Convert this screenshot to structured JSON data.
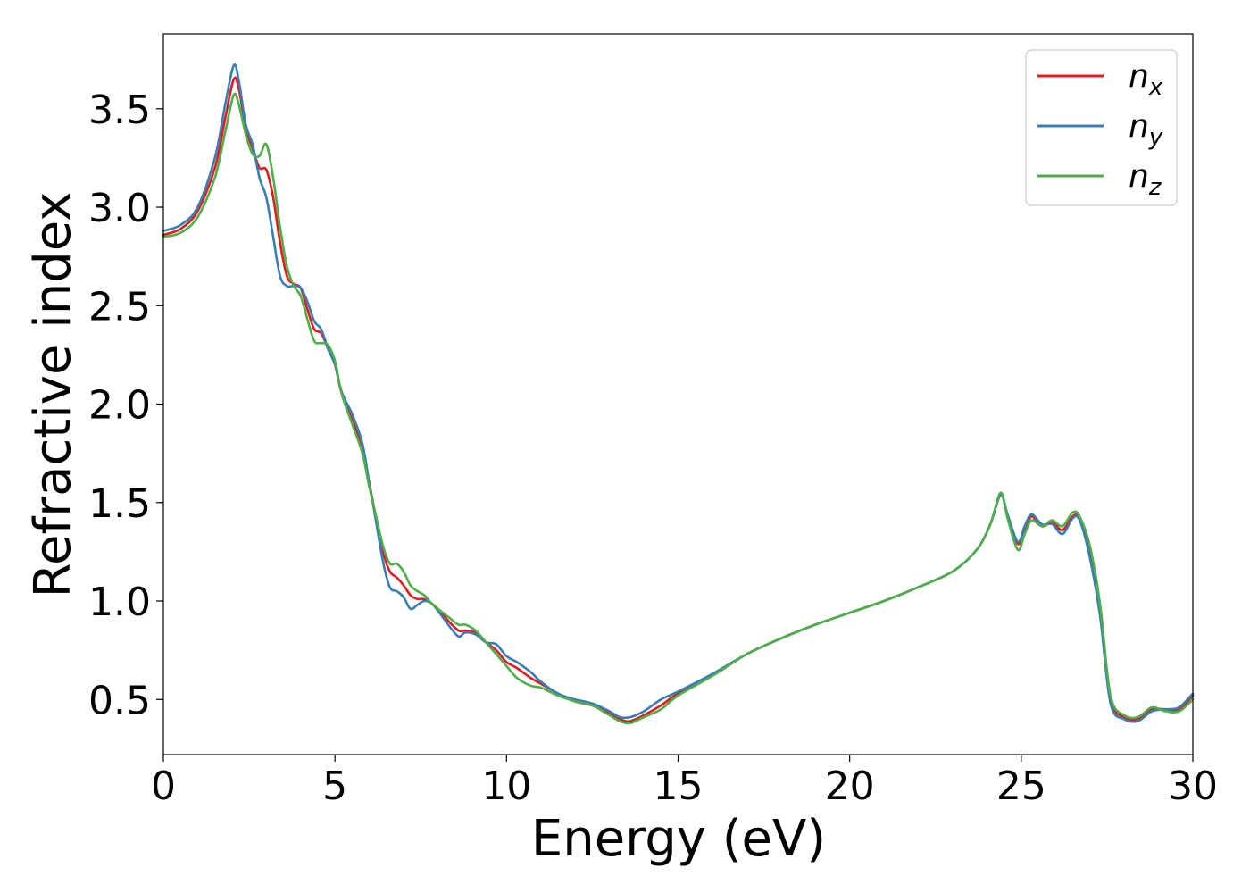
{
  "chart_data": {
    "type": "line",
    "title": "",
    "xlabel": "Energy (eV)",
    "ylabel": "Refractive index",
    "xlim": [
      0,
      30
    ],
    "ylim": [
      0.22,
      3.88
    ],
    "xticks": [
      0,
      5,
      10,
      15,
      20,
      25,
      30
    ],
    "xtick_labels": [
      "0",
      "5",
      "10",
      "15",
      "20",
      "25",
      "30"
    ],
    "yticks": [
      0.5,
      1.0,
      1.5,
      2.0,
      2.5,
      3.0,
      3.5
    ],
    "ytick_labels": [
      "0.5",
      "1.0",
      "1.5",
      "2.0",
      "2.5",
      "3.0",
      "3.5"
    ],
    "grid": false,
    "legend_position": "top-right",
    "series": [
      {
        "name": "n",
        "subscript": "x",
        "color": "#e41a1c",
        "points": [
          [
            0,
            2.86
          ],
          [
            0.5,
            2.89
          ],
          [
            1.0,
            2.98
          ],
          [
            1.5,
            3.2
          ],
          [
            1.8,
            3.45
          ],
          [
            2.05,
            3.65
          ],
          [
            2.2,
            3.6
          ],
          [
            2.4,
            3.4
          ],
          [
            2.6,
            3.3
          ],
          [
            2.8,
            3.2
          ],
          [
            3.0,
            3.19
          ],
          [
            3.2,
            3.05
          ],
          [
            3.4,
            2.82
          ],
          [
            3.6,
            2.65
          ],
          [
            3.8,
            2.61
          ],
          [
            4.0,
            2.59
          ],
          [
            4.2,
            2.48
          ],
          [
            4.4,
            2.38
          ],
          [
            4.6,
            2.36
          ],
          [
            4.8,
            2.28
          ],
          [
            5.0,
            2.2
          ],
          [
            5.2,
            2.05
          ],
          [
            5.5,
            1.92
          ],
          [
            5.8,
            1.78
          ],
          [
            6.0,
            1.6
          ],
          [
            6.2,
            1.42
          ],
          [
            6.4,
            1.25
          ],
          [
            6.6,
            1.15
          ],
          [
            6.8,
            1.12
          ],
          [
            7.0,
            1.08
          ],
          [
            7.2,
            1.03
          ],
          [
            7.4,
            1.01
          ],
          [
            7.6,
            1.01
          ],
          [
            7.8,
            0.99
          ],
          [
            8.0,
            0.96
          ],
          [
            8.3,
            0.9
          ],
          [
            8.6,
            0.85
          ],
          [
            8.8,
            0.85
          ],
          [
            9.1,
            0.84
          ],
          [
            9.4,
            0.79
          ],
          [
            9.7,
            0.75
          ],
          [
            10.0,
            0.69
          ],
          [
            10.3,
            0.66
          ],
          [
            10.7,
            0.61
          ],
          [
            11.0,
            0.58
          ],
          [
            11.5,
            0.53
          ],
          [
            12.0,
            0.49
          ],
          [
            12.5,
            0.47
          ],
          [
            13.0,
            0.43
          ],
          [
            13.3,
            0.4
          ],
          [
            13.6,
            0.39
          ],
          [
            14.0,
            0.42
          ],
          [
            14.5,
            0.47
          ],
          [
            15.0,
            0.53
          ],
          [
            16.0,
            0.62
          ],
          [
            17.0,
            0.73
          ],
          [
            18.0,
            0.81
          ],
          [
            19.0,
            0.88
          ],
          [
            20.0,
            0.94
          ],
          [
            21.0,
            1.0
          ],
          [
            22.0,
            1.07
          ],
          [
            23.0,
            1.15
          ],
          [
            23.7,
            1.26
          ],
          [
            24.1,
            1.39
          ],
          [
            24.4,
            1.54
          ],
          [
            24.6,
            1.43
          ],
          [
            24.9,
            1.29
          ],
          [
            25.1,
            1.36
          ],
          [
            25.3,
            1.43
          ],
          [
            25.6,
            1.38
          ],
          [
            25.9,
            1.4
          ],
          [
            26.2,
            1.36
          ],
          [
            26.5,
            1.43
          ],
          [
            26.7,
            1.42
          ],
          [
            27.0,
            1.25
          ],
          [
            27.3,
            0.95
          ],
          [
            27.6,
            0.5
          ],
          [
            28.0,
            0.41
          ],
          [
            28.4,
            0.4
          ],
          [
            28.8,
            0.45
          ],
          [
            29.2,
            0.45
          ],
          [
            29.6,
            0.45
          ],
          [
            30.0,
            0.52
          ]
        ]
      },
      {
        "name": "n",
        "subscript": "y",
        "color": "#377eb8",
        "points": [
          [
            0,
            2.88
          ],
          [
            0.5,
            2.91
          ],
          [
            1.0,
            3.0
          ],
          [
            1.5,
            3.25
          ],
          [
            1.8,
            3.52
          ],
          [
            2.05,
            3.72
          ],
          [
            2.2,
            3.64
          ],
          [
            2.4,
            3.42
          ],
          [
            2.6,
            3.32
          ],
          [
            2.8,
            3.15
          ],
          [
            3.0,
            3.05
          ],
          [
            3.2,
            2.85
          ],
          [
            3.4,
            2.65
          ],
          [
            3.6,
            2.6
          ],
          [
            3.8,
            2.6
          ],
          [
            4.0,
            2.59
          ],
          [
            4.2,
            2.52
          ],
          [
            4.4,
            2.42
          ],
          [
            4.6,
            2.38
          ],
          [
            4.8,
            2.28
          ],
          [
            5.0,
            2.2
          ],
          [
            5.2,
            2.06
          ],
          [
            5.5,
            1.95
          ],
          [
            5.8,
            1.8
          ],
          [
            6.0,
            1.6
          ],
          [
            6.2,
            1.4
          ],
          [
            6.4,
            1.2
          ],
          [
            6.6,
            1.07
          ],
          [
            6.8,
            1.05
          ],
          [
            7.0,
            1.02
          ],
          [
            7.2,
            0.96
          ],
          [
            7.4,
            0.98
          ],
          [
            7.6,
            1.0
          ],
          [
            7.8,
            0.99
          ],
          [
            8.0,
            0.95
          ],
          [
            8.3,
            0.88
          ],
          [
            8.6,
            0.82
          ],
          [
            8.8,
            0.84
          ],
          [
            9.1,
            0.83
          ],
          [
            9.4,
            0.79
          ],
          [
            9.7,
            0.78
          ],
          [
            10.0,
            0.72
          ],
          [
            10.3,
            0.69
          ],
          [
            10.7,
            0.64
          ],
          [
            11.0,
            0.59
          ],
          [
            11.5,
            0.53
          ],
          [
            12.0,
            0.5
          ],
          [
            12.5,
            0.48
          ],
          [
            13.0,
            0.44
          ],
          [
            13.3,
            0.41
          ],
          [
            13.6,
            0.41
          ],
          [
            14.0,
            0.44
          ],
          [
            14.5,
            0.5
          ],
          [
            15.0,
            0.54
          ],
          [
            16.0,
            0.63
          ],
          [
            17.0,
            0.73
          ],
          [
            18.0,
            0.81
          ],
          [
            19.0,
            0.88
          ],
          [
            20.0,
            0.94
          ],
          [
            21.0,
            1.0
          ],
          [
            22.0,
            1.07
          ],
          [
            23.0,
            1.15
          ],
          [
            23.7,
            1.26
          ],
          [
            24.1,
            1.39
          ],
          [
            24.4,
            1.54
          ],
          [
            24.6,
            1.44
          ],
          [
            24.9,
            1.3
          ],
          [
            25.1,
            1.38
          ],
          [
            25.3,
            1.44
          ],
          [
            25.6,
            1.39
          ],
          [
            25.9,
            1.39
          ],
          [
            26.2,
            1.34
          ],
          [
            26.5,
            1.42
          ],
          [
            26.7,
            1.41
          ],
          [
            27.0,
            1.22
          ],
          [
            27.3,
            0.92
          ],
          [
            27.6,
            0.48
          ],
          [
            28.0,
            0.4
          ],
          [
            28.4,
            0.39
          ],
          [
            28.8,
            0.44
          ],
          [
            29.2,
            0.45
          ],
          [
            29.6,
            0.46
          ],
          [
            30.0,
            0.53
          ]
        ]
      },
      {
        "name": "n",
        "subscript": "z",
        "color": "#4daf4a",
        "points": [
          [
            0,
            2.85
          ],
          [
            0.5,
            2.87
          ],
          [
            1.0,
            2.95
          ],
          [
            1.5,
            3.15
          ],
          [
            1.8,
            3.38
          ],
          [
            2.05,
            3.57
          ],
          [
            2.2,
            3.52
          ],
          [
            2.4,
            3.37
          ],
          [
            2.6,
            3.27
          ],
          [
            2.8,
            3.26
          ],
          [
            3.0,
            3.32
          ],
          [
            3.2,
            3.15
          ],
          [
            3.4,
            2.9
          ],
          [
            3.6,
            2.7
          ],
          [
            3.8,
            2.6
          ],
          [
            4.0,
            2.55
          ],
          [
            4.2,
            2.43
          ],
          [
            4.4,
            2.32
          ],
          [
            4.6,
            2.31
          ],
          [
            4.8,
            2.3
          ],
          [
            5.0,
            2.22
          ],
          [
            5.2,
            2.05
          ],
          [
            5.5,
            1.9
          ],
          [
            5.8,
            1.75
          ],
          [
            6.0,
            1.58
          ],
          [
            6.2,
            1.43
          ],
          [
            6.4,
            1.28
          ],
          [
            6.6,
            1.19
          ],
          [
            6.8,
            1.19
          ],
          [
            7.0,
            1.15
          ],
          [
            7.2,
            1.08
          ],
          [
            7.4,
            1.05
          ],
          [
            7.6,
            1.03
          ],
          [
            7.8,
            0.99
          ],
          [
            8.0,
            0.96
          ],
          [
            8.3,
            0.92
          ],
          [
            8.6,
            0.88
          ],
          [
            8.8,
            0.88
          ],
          [
            9.1,
            0.85
          ],
          [
            9.4,
            0.79
          ],
          [
            9.7,
            0.73
          ],
          [
            10.0,
            0.67
          ],
          [
            10.3,
            0.61
          ],
          [
            10.7,
            0.57
          ],
          [
            11.0,
            0.56
          ],
          [
            11.5,
            0.52
          ],
          [
            12.0,
            0.49
          ],
          [
            12.5,
            0.47
          ],
          [
            13.0,
            0.42
          ],
          [
            13.3,
            0.39
          ],
          [
            13.6,
            0.38
          ],
          [
            14.0,
            0.41
          ],
          [
            14.5,
            0.45
          ],
          [
            15.0,
            0.52
          ],
          [
            16.0,
            0.62
          ],
          [
            17.0,
            0.73
          ],
          [
            18.0,
            0.81
          ],
          [
            19.0,
            0.88
          ],
          [
            20.0,
            0.94
          ],
          [
            21.0,
            1.0
          ],
          [
            22.0,
            1.07
          ],
          [
            23.0,
            1.15
          ],
          [
            23.7,
            1.26
          ],
          [
            24.1,
            1.39
          ],
          [
            24.4,
            1.55
          ],
          [
            24.6,
            1.42
          ],
          [
            24.9,
            1.26
          ],
          [
            25.1,
            1.34
          ],
          [
            25.3,
            1.41
          ],
          [
            25.6,
            1.38
          ],
          [
            25.9,
            1.41
          ],
          [
            26.2,
            1.38
          ],
          [
            26.5,
            1.45
          ],
          [
            26.7,
            1.43
          ],
          [
            27.0,
            1.28
          ],
          [
            27.3,
            0.98
          ],
          [
            27.6,
            0.52
          ],
          [
            28.0,
            0.42
          ],
          [
            28.4,
            0.41
          ],
          [
            28.8,
            0.46
          ],
          [
            29.2,
            0.44
          ],
          [
            29.6,
            0.44
          ],
          [
            30.0,
            0.5
          ]
        ]
      }
    ]
  }
}
